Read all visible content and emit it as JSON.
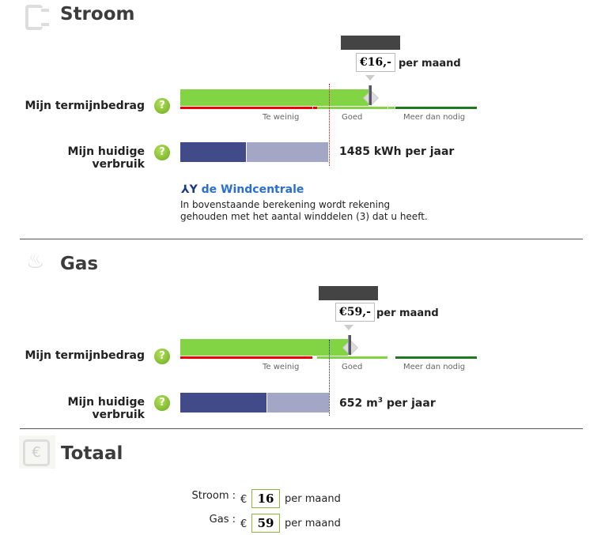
{
  "stroom": {
    "title": "Stroom",
    "tooltip": "€16,-",
    "per_month": "per maand",
    "termijn_label": "Mijn termijnbedrag",
    "verbruik_label": "Mijn huidige verbruik",
    "help": "?",
    "scale": [
      "Te weinig",
      "Goed",
      "Meer dan nodig"
    ],
    "usage": "1485 kWh per jaar",
    "wind_logo": "de Windcentrale",
    "wind_text_1": "In bovenstaande berekening wordt rekening",
    "wind_text_2": "gehouden met het aantal winddelen (3) dat u heeft."
  },
  "gas": {
    "title": "Gas",
    "tooltip": "€59,-",
    "per_month": "per maand",
    "termijn_label": "Mijn termijnbedrag",
    "verbruik_label": "Mijn huidige verbruik",
    "help": "?",
    "scale": [
      "Te weinig",
      "Goed",
      "Meer dan nodig"
    ],
    "usage_num": "652 m",
    "usage_sup": "3",
    "usage_suffix": " per jaar"
  },
  "totaal": {
    "title": "Totaal",
    "currency_icon": "€",
    "rows": [
      {
        "label": "Stroom :",
        "cur": "€",
        "value": "16",
        "unit": "per maand"
      },
      {
        "label": "Gas :",
        "cur": "€",
        "value": "59",
        "unit": "per maand"
      }
    ]
  }
}
